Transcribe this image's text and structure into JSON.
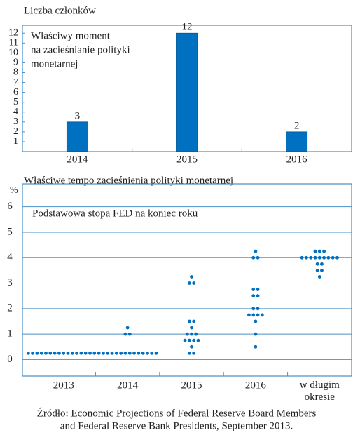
{
  "chart_data": [
    {
      "type": "bar",
      "title": "Liczba członków",
      "annotation": [
        "Właściwy moment",
        "na zacieśnianie polityki",
        "monetarnej"
      ],
      "categories": [
        "2014",
        "2015",
        "2016"
      ],
      "values": [
        3,
        12,
        2
      ],
      "color": "#0070c0",
      "ylim": [
        0,
        12.8
      ],
      "yticks": [
        1,
        2,
        3,
        4,
        5,
        6,
        7,
        8,
        9,
        10,
        11,
        12
      ]
    },
    {
      "type": "dotplot",
      "title": "Właściwe tempo zacieśnienia polityki monetarnej",
      "y_label": "%",
      "annotation": "Podstawowa stopa FED na koniec roku",
      "categories": [
        "2013",
        "2014",
        "2015",
        "2016",
        "w długim okresie"
      ],
      "values": [
        [
          0.25,
          0.25,
          0.25,
          0.25,
          0.25,
          0.25,
          0.25,
          0.25,
          0.25,
          0.25,
          0.25,
          0.25,
          0.25,
          0.25,
          0.25,
          0.25,
          0.25
        ],
        [
          0.25,
          0.25,
          0.25,
          0.25,
          0.25,
          0.25,
          0.25,
          0.25,
          0.25,
          0.25,
          0.25,
          0.25,
          0.25,
          0.25,
          1,
          1,
          1.25
        ],
        [
          0.25,
          0.25,
          0.5,
          0.75,
          0.75,
          0.75,
          0.75,
          1,
          1,
          1,
          1.25,
          1.5,
          1.5,
          3,
          3,
          3.25
        ],
        [
          0.5,
          1,
          1.5,
          1.75,
          1.75,
          1.75,
          1.75,
          2,
          2,
          2.5,
          2.5,
          2.75,
          2.75,
          4,
          4,
          4.25
        ],
        [
          3.25,
          3.5,
          3.5,
          3.75,
          3.75,
          4,
          4,
          4,
          4,
          4,
          4,
          4,
          4,
          4,
          4.25,
          4.25,
          4.25
        ]
      ],
      "color": "#0070c0",
      "ylim": [
        -0.65,
        6.9
      ],
      "yticks": [
        0,
        1,
        2,
        3,
        4,
        5,
        6
      ],
      "grid": true
    }
  ],
  "source": [
    "Źródło: Economic Projections of Federal Reserve Board Members",
    "and Federal Reserve Bank Presidents, September 2013."
  ]
}
